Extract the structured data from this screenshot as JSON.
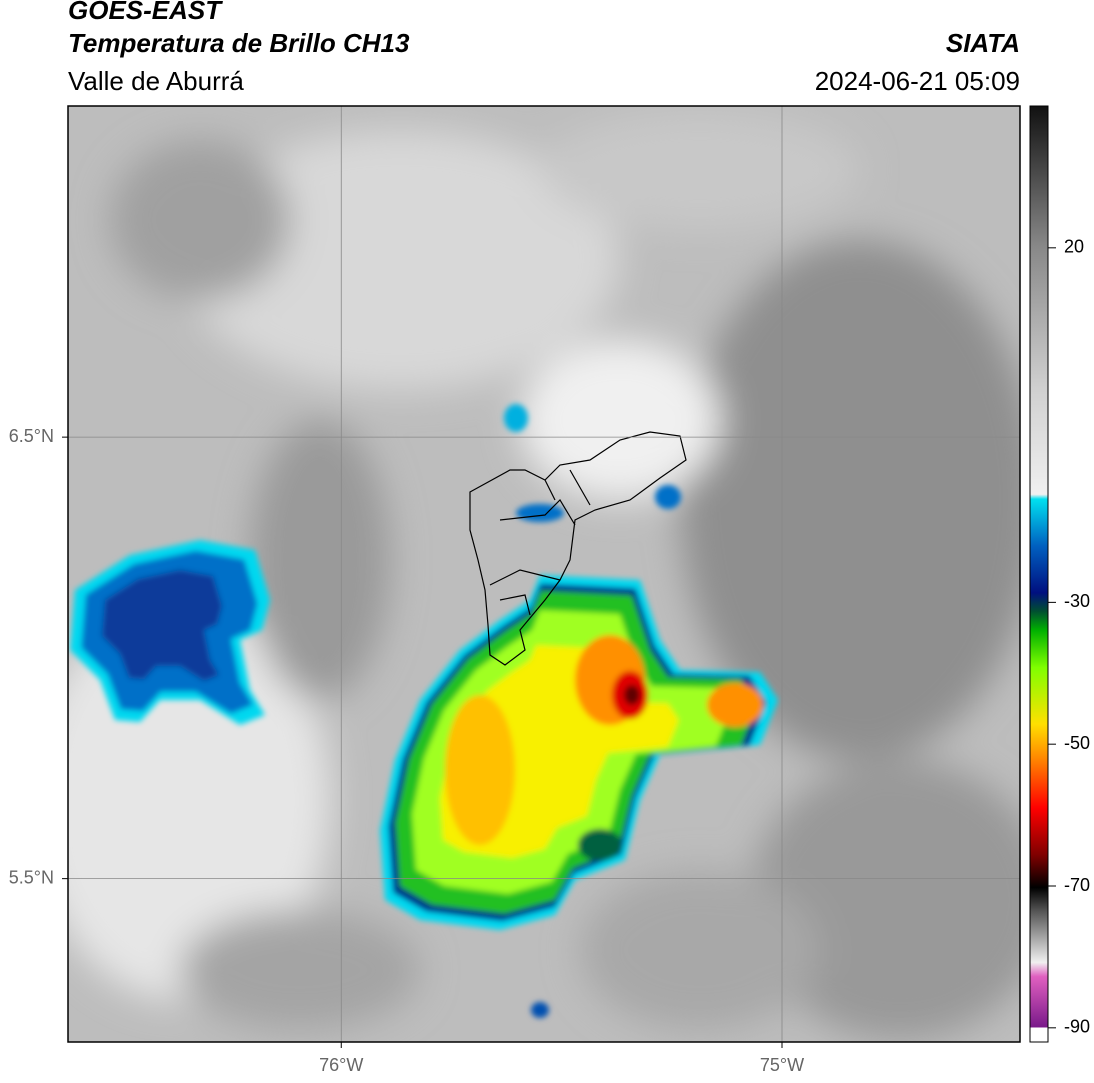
{
  "header": {
    "title": "GOES-EAST",
    "subtitle": "Temperatura de Brillo CH13",
    "region": "Valle de Aburrá",
    "source": "SIATA",
    "datetime": "2024-06-21 05:09"
  },
  "map": {
    "xlim": [
      -76.62,
      -74.46
    ],
    "ylim": [
      5.13,
      7.25
    ],
    "xticks": [
      {
        "value": -76,
        "label": "76°W"
      },
      {
        "value": -75,
        "label": "75°W"
      }
    ],
    "yticks": [
      {
        "value": 6.5,
        "label": "6.5°N"
      },
      {
        "value": 5.5,
        "label": "5.5°N"
      }
    ],
    "grid": true
  },
  "colorbar": {
    "lim": [
      -92,
      40
    ],
    "ticks": [
      20,
      -30,
      -50,
      -70,
      -90
    ]
  }
}
